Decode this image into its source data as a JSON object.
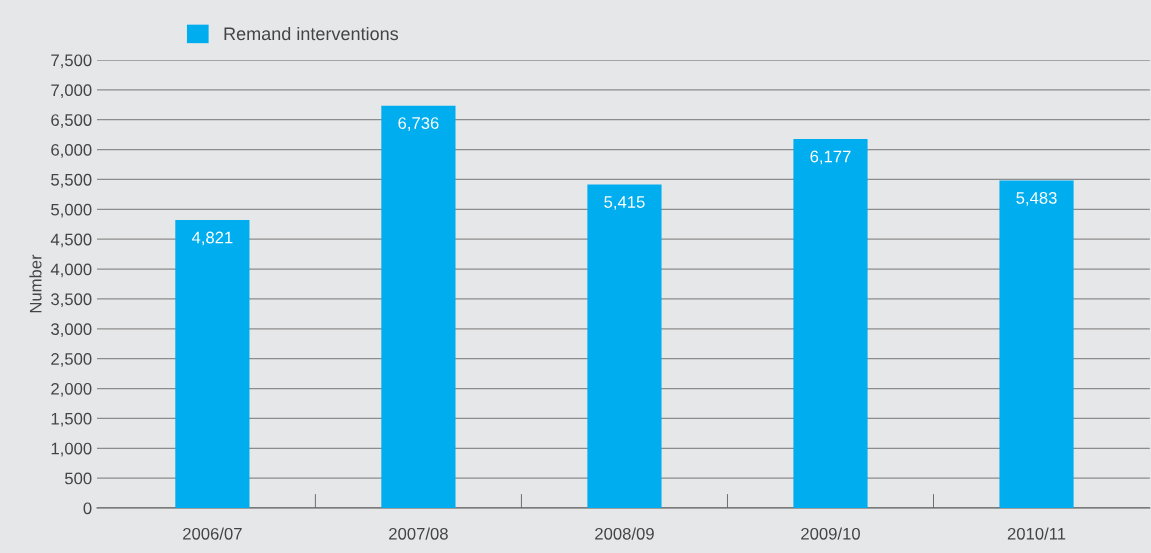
{
  "chart_data": {
    "type": "bar",
    "ylabel": "Number",
    "categories": [
      "2006/07",
      "2007/08",
      "2008/09",
      "2009/10",
      "2010/11"
    ],
    "series": [
      {
        "name": "Remand interventions",
        "color": "#00aeef",
        "values": [
          4821,
          6736,
          5415,
          6177,
          5483
        ]
      }
    ],
    "ylim": [
      0,
      7500
    ],
    "yticks": [
      0,
      500,
      {
        "value": 1000,
        "label": "1,000"
      },
      {
        "value": 1500,
        "label": "1,500"
      },
      {
        "value": 2000,
        "label": "2,000"
      },
      {
        "value": 2500,
        "label": "2,500"
      },
      {
        "value": 3000,
        "label": "3,000"
      },
      {
        "value": 3500,
        "label": "3,500"
      },
      {
        "value": 4000,
        "label": "4,000"
      },
      {
        "value": 4500,
        "label": "4,500"
      },
      {
        "value": 5000,
        "label": "5,000"
      },
      {
        "value": 5500,
        "label": "5,500"
      },
      {
        "value": 6000,
        "label": "6,000"
      },
      {
        "value": 6500,
        "label": "6,500"
      },
      {
        "value": 7000,
        "label": "7,000"
      },
      {
        "value": 7500,
        "label": "7,500"
      }
    ],
    "grid": "y",
    "legend": "top left",
    "value_labels": [
      "4,821",
      "6,736",
      "5,415",
      "6,177",
      "5,483"
    ]
  }
}
